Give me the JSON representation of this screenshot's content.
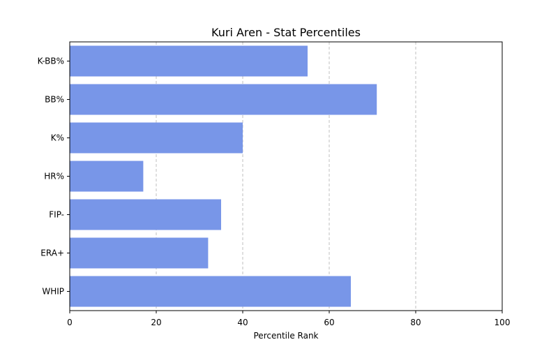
{
  "chart_data": {
    "type": "bar",
    "orientation": "horizontal",
    "title": "Kuri Aren - Stat Percentiles",
    "xlabel": "Percentile Rank",
    "ylabel": "",
    "categories": [
      "K-BB%",
      "BB%",
      "K%",
      "HR%",
      "FIP-",
      "ERA+",
      "WHIP"
    ],
    "values": [
      55,
      71,
      40,
      17,
      35,
      32,
      65
    ],
    "xlim": [
      0,
      100
    ],
    "xticks": [
      0,
      20,
      40,
      60,
      80,
      100
    ],
    "grid": "x-dashed",
    "bar_color": "#7896e8"
  }
}
